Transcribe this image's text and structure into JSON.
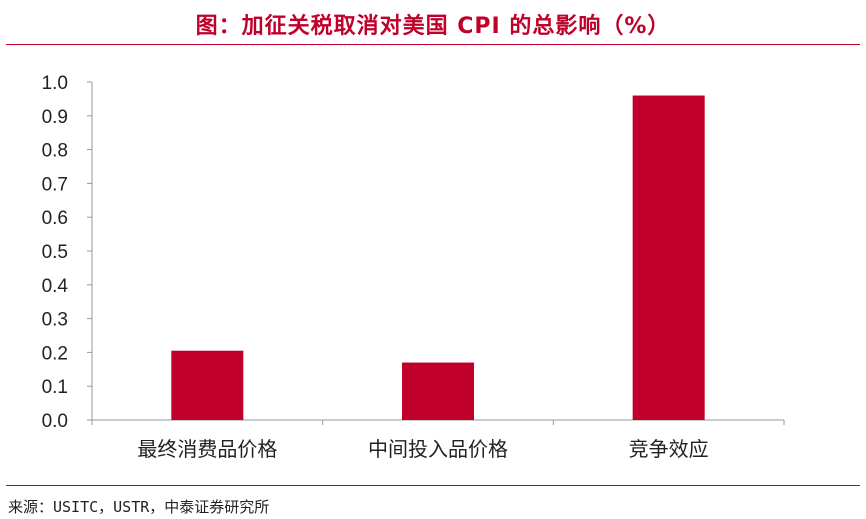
{
  "title": "图：加征关税取消对美国 CPI 的总影响（%）",
  "source": "来源：USITC，USTR，中泰证券研究所",
  "colors": {
    "accent": "#c0002a",
    "bar": "#c0002a",
    "axis": "#999999"
  },
  "chart_data": {
    "type": "bar",
    "title": "图：加征关税取消对美国 CPI 的总影响（%）",
    "xlabel": "",
    "ylabel": "",
    "categories": [
      "最终消费品价格",
      "中间投入品价格",
      "竞争效应"
    ],
    "values": [
      0.205,
      0.17,
      0.96
    ],
    "ylim": [
      0,
      1.0
    ],
    "yticks": [
      "0.0",
      "0.1",
      "0.2",
      "0.3",
      "0.4",
      "0.5",
      "0.6",
      "0.7",
      "0.8",
      "0.9",
      "1.0"
    ],
    "grid": false,
    "legend": "none"
  }
}
